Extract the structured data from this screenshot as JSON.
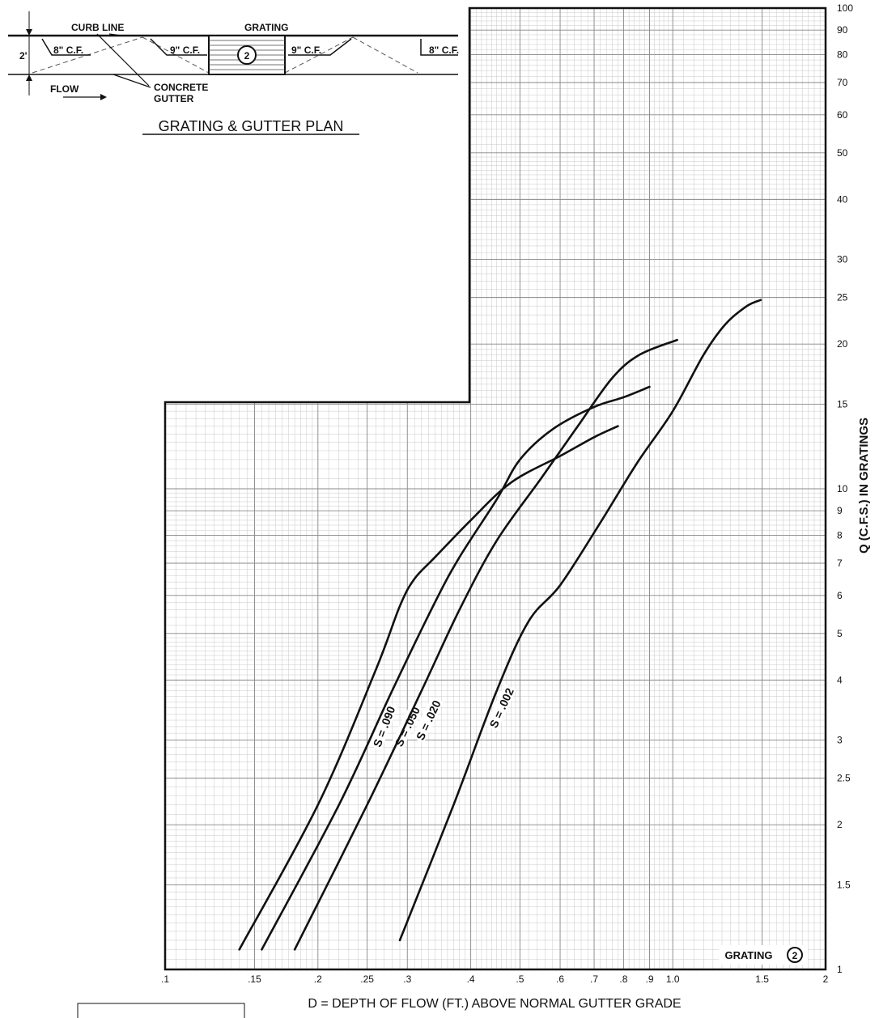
{
  "plan": {
    "labels": {
      "curb_line": "CURB LINE",
      "grating": "GRATING",
      "cf8_left": "8\" C.F.",
      "cf9_left": "9\" C.F.",
      "cf9_right": "9\" C.F.",
      "cf8_right": "8\" C.F.",
      "two_ft": "2'",
      "flow": "FLOW",
      "concrete": "CONCRETE",
      "gutter": "GUTTER",
      "grating_number": "2"
    },
    "title": "GRATING & GUTTER PLAN"
  },
  "chart_data": {
    "type": "line",
    "xscale": "log",
    "yscale": "log",
    "xlim": [
      0.1,
      2.0
    ],
    "ylim": [
      1,
      100
    ],
    "xlabel": "D = DEPTH OF FLOW (FT.) ABOVE NORMAL GUTTER GRADE",
    "ylabel": "Q (C.F.S.) IN GRATINGS",
    "x_ticks": [
      0.1,
      0.15,
      0.2,
      0.25,
      0.3,
      0.4,
      0.5,
      0.6,
      0.7,
      0.8,
      0.9,
      1.0,
      1.5,
      2
    ],
    "x_tick_labels": [
      ".1",
      ".15",
      ".2",
      ".25",
      ".3",
      ".4",
      ".5",
      ".6",
      ".7",
      ".8",
      ".9",
      "1.0",
      "1.5",
      "2"
    ],
    "y_ticks": [
      1,
      1.5,
      2,
      2.5,
      3,
      4,
      5,
      6,
      7,
      8,
      9,
      10,
      15,
      20,
      25,
      30,
      40,
      50,
      60,
      70,
      80,
      90,
      100
    ],
    "y_tick_labels": [
      "1",
      "1.5",
      "2",
      "2.5",
      "3",
      "4",
      "5",
      "6",
      "7",
      "8",
      "9",
      "10",
      "15",
      "20",
      "25",
      "30",
      "40",
      "50",
      "60",
      "70",
      "80",
      "90",
      "100"
    ],
    "grid": true,
    "grating_label": "GRATING",
    "grating_number": "2",
    "series": [
      {
        "name": "S = .090",
        "label_at": [
          0.27,
          3.2
        ],
        "x": [
          0.14,
          0.2,
          0.26,
          0.29,
          0.31,
          0.34,
          0.4,
          0.48,
          0.6,
          0.7,
          0.78
        ],
        "y": [
          1.1,
          2.2,
          4.2,
          5.7,
          6.5,
          7.2,
          8.6,
          10.3,
          11.7,
          12.8,
          13.5
        ]
      },
      {
        "name": "S = .050",
        "label_at": [
          0.3,
          3.2
        ],
        "x": [
          0.155,
          0.22,
          0.28,
          0.34,
          0.38,
          0.45,
          0.5,
          0.58,
          0.7,
          0.8,
          0.9
        ],
        "y": [
          1.1,
          2.2,
          3.8,
          5.8,
          7.2,
          9.5,
          11.5,
          13.3,
          14.8,
          15.5,
          16.3
        ]
      },
      {
        "name": "S = .020",
        "label_at": [
          0.33,
          3.3
        ],
        "x": [
          0.18,
          0.25,
          0.32,
          0.38,
          0.45,
          0.55,
          0.65,
          0.76,
          0.86,
          1.02
        ],
        "y": [
          1.1,
          2.2,
          3.8,
          5.6,
          7.8,
          10.5,
          13.5,
          17.0,
          19.0,
          20.4
        ]
      },
      {
        "name": "S = .002",
        "label_at": [
          0.46,
          3.5
        ],
        "x": [
          0.29,
          0.37,
          0.45,
          0.52,
          0.6,
          0.72,
          0.85,
          1.0,
          1.15,
          1.27,
          1.4,
          1.49
        ],
        "y": [
          1.15,
          2.2,
          3.8,
          5.3,
          6.3,
          8.5,
          11.3,
          14.5,
          19.0,
          22.0,
          24.0,
          24.7
        ]
      }
    ]
  }
}
